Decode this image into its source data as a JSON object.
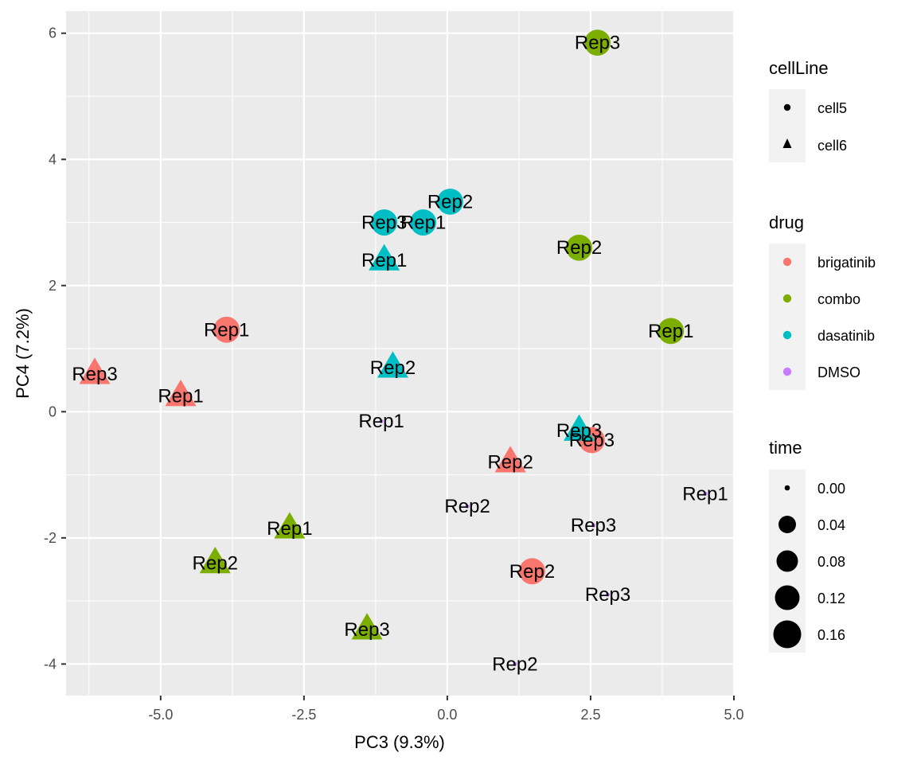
{
  "chart_data": {
    "type": "scatter",
    "title": "",
    "xlabel": "PC3 (9.3%)",
    "ylabel": "PC4 (7.2%)",
    "xlim": [
      -6.65,
      5.0
    ],
    "ylim": [
      -4.5,
      6.35
    ],
    "xticks": [
      -5.0,
      -2.5,
      0.0,
      2.5,
      5.0
    ],
    "xtick_labels": [
      "-5.0",
      "-2.5",
      "0.0",
      "2.5",
      "5.0"
    ],
    "yticks": [
      -4,
      -2,
      0,
      2,
      4,
      6
    ],
    "ytick_labels": [
      "-4",
      "-2",
      "0",
      "2",
      "4",
      "6"
    ],
    "grid": true,
    "legend_position": "right",
    "colors": {
      "brigatinib": "#F8766D",
      "combo": "#7CAE00",
      "dasatinib": "#00BFC4",
      "DMSO": "#C77CFF"
    },
    "legends": {
      "cellLine": {
        "title": "cellLine",
        "entries": [
          {
            "label": "cell5",
            "shape": "circle"
          },
          {
            "label": "cell6",
            "shape": "triangle"
          }
        ]
      },
      "drug": {
        "title": "drug",
        "entries": [
          "brigatinib",
          "combo",
          "dasatinib",
          "DMSO"
        ]
      },
      "time": {
        "title": "time",
        "entries": [
          {
            "label": "0.00",
            "value": 0.0
          },
          {
            "label": "0.04",
            "value": 0.04
          },
          {
            "label": "0.08",
            "value": 0.08
          },
          {
            "label": "0.12",
            "value": 0.12
          },
          {
            "label": "0.16",
            "value": 0.16
          }
        ]
      }
    },
    "points": [
      {
        "x": 2.62,
        "y": 5.85,
        "drug": "combo",
        "cellLine": "cell5",
        "time": 0.14,
        "label": "Rep3"
      },
      {
        "x": 0.05,
        "y": 3.33,
        "drug": "dasatinib",
        "cellLine": "cell5",
        "time": 0.14,
        "label": "Rep2"
      },
      {
        "x": -1.1,
        "y": 3.0,
        "drug": "dasatinib",
        "cellLine": "cell5",
        "time": 0.14,
        "label": "Rep3"
      },
      {
        "x": -0.42,
        "y": 3.0,
        "drug": "dasatinib",
        "cellLine": "cell5",
        "time": 0.14,
        "label": "Rep1"
      },
      {
        "x": 2.3,
        "y": 2.6,
        "drug": "combo",
        "cellLine": "cell5",
        "time": 0.14,
        "label": "Rep2"
      },
      {
        "x": -1.1,
        "y": 2.4,
        "drug": "dasatinib",
        "cellLine": "cell6",
        "time": 0.14,
        "label": "Rep1"
      },
      {
        "x": -3.85,
        "y": 1.3,
        "drug": "brigatinib",
        "cellLine": "cell5",
        "time": 0.14,
        "label": "Rep1"
      },
      {
        "x": 3.9,
        "y": 1.28,
        "drug": "combo",
        "cellLine": "cell5",
        "time": 0.14,
        "label": "Rep1"
      },
      {
        "x": -0.95,
        "y": 0.7,
        "drug": "dasatinib",
        "cellLine": "cell6",
        "time": 0.14,
        "label": "Rep2"
      },
      {
        "x": -6.15,
        "y": 0.6,
        "drug": "brigatinib",
        "cellLine": "cell6",
        "time": 0.14,
        "label": "Rep3"
      },
      {
        "x": -4.65,
        "y": 0.25,
        "drug": "brigatinib",
        "cellLine": "cell6",
        "time": 0.14,
        "label": "Rep1"
      },
      {
        "x": -1.15,
        "y": -0.15,
        "drug": "DMSO",
        "cellLine": "cell5",
        "time": 0.0,
        "label": "Rep1"
      },
      {
        "x": 2.52,
        "y": -0.45,
        "drug": "brigatinib",
        "cellLine": "cell5",
        "time": 0.14,
        "label": "Rep3"
      },
      {
        "x": 2.3,
        "y": -0.3,
        "drug": "dasatinib",
        "cellLine": "cell6",
        "time": 0.14,
        "label": "Rep3"
      },
      {
        "x": 1.1,
        "y": -0.8,
        "drug": "brigatinib",
        "cellLine": "cell6",
        "time": 0.14,
        "label": "Rep2"
      },
      {
        "x": 4.5,
        "y": -1.3,
        "drug": "DMSO",
        "cellLine": "cell5",
        "time": 0.0,
        "label": "Rep1"
      },
      {
        "x": 0.35,
        "y": -1.5,
        "drug": "DMSO",
        "cellLine": "cell5",
        "time": 0.0,
        "label": "Rep2"
      },
      {
        "x": 2.55,
        "y": -1.8,
        "drug": "DMSO",
        "cellLine": "cell5",
        "time": 0.0,
        "label": "Rep3"
      },
      {
        "x": -2.75,
        "y": -1.85,
        "drug": "combo",
        "cellLine": "cell6",
        "time": 0.14,
        "label": "Rep1"
      },
      {
        "x": -4.05,
        "y": -2.4,
        "drug": "combo",
        "cellLine": "cell6",
        "time": 0.14,
        "label": "Rep2"
      },
      {
        "x": 1.48,
        "y": -2.53,
        "drug": "brigatinib",
        "cellLine": "cell5",
        "time": 0.14,
        "label": "Rep2"
      },
      {
        "x": 2.8,
        "y": -2.9,
        "drug": "DMSO",
        "cellLine": "cell5",
        "time": 0.0,
        "label": "Rep3"
      },
      {
        "x": -1.4,
        "y": -3.45,
        "drug": "combo",
        "cellLine": "cell6",
        "time": 0.14,
        "label": "Rep3"
      },
      {
        "x": 1.18,
        "y": -4.0,
        "drug": "DMSO",
        "cellLine": "cell5",
        "time": 0.0,
        "label": "Rep2"
      }
    ]
  }
}
